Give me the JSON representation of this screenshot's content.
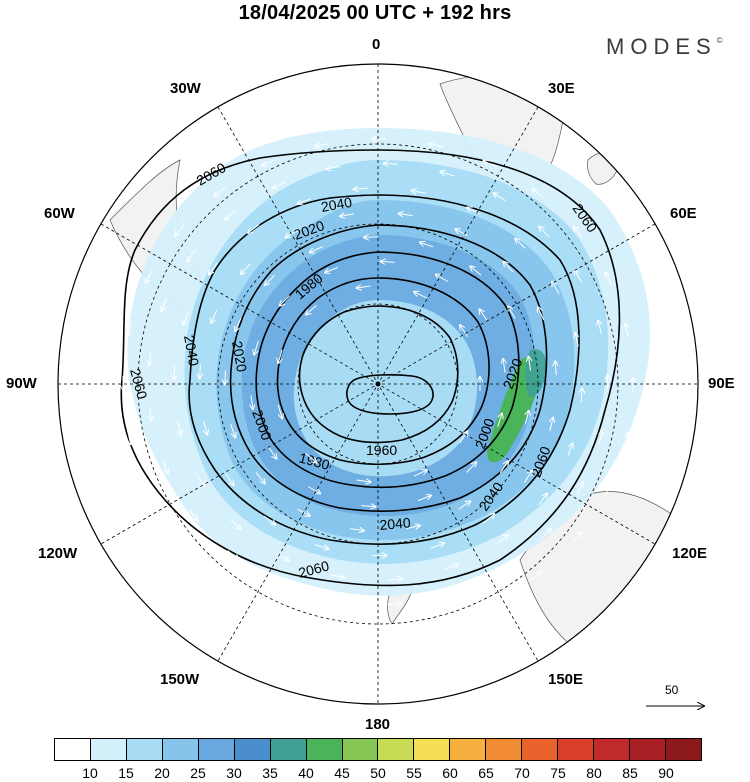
{
  "title": "18/04/2025  00 UTC  + 192 hrs",
  "brand": {
    "name": "MODES",
    "mark": "©"
  },
  "longitude_labels": [
    {
      "id": "lon-0",
      "text": "0"
    },
    {
      "id": "lon-30e",
      "text": "30E"
    },
    {
      "id": "lon-60e",
      "text": "60E"
    },
    {
      "id": "lon-90e",
      "text": "90E"
    },
    {
      "id": "lon-120e",
      "text": "120E"
    },
    {
      "id": "lon-150e",
      "text": "150E"
    },
    {
      "id": "lon-180",
      "text": "180"
    },
    {
      "id": "lon-150w",
      "text": "150W"
    },
    {
      "id": "lon-120w",
      "text": "120W"
    },
    {
      "id": "lon-90w",
      "text": "90W"
    },
    {
      "id": "lon-60w",
      "text": "60W"
    },
    {
      "id": "lon-30w",
      "text": "30W"
    }
  ],
  "contour_labels": [
    "2060",
    "2040",
    "2020",
    "1980",
    "1960",
    "2000"
  ],
  "reference_vector": {
    "value": "50"
  },
  "colorbar": {
    "colors": [
      "#ffffff",
      "#d4f0fb",
      "#a8dcf5",
      "#87c4ec",
      "#68a8de",
      "#4a8fcb",
      "#3fa195",
      "#49b45a",
      "#86c652",
      "#c7dc54",
      "#f5de58",
      "#f6b040",
      "#f08b33",
      "#e8632b",
      "#d8402a",
      "#c02a2a",
      "#a71f25",
      "#8c1a1d"
    ],
    "labels": [
      "10",
      "15",
      "20",
      "25",
      "30",
      "35",
      "40",
      "45",
      "50",
      "55",
      "60",
      "65",
      "70",
      "75",
      "80",
      "85",
      "90"
    ]
  }
}
